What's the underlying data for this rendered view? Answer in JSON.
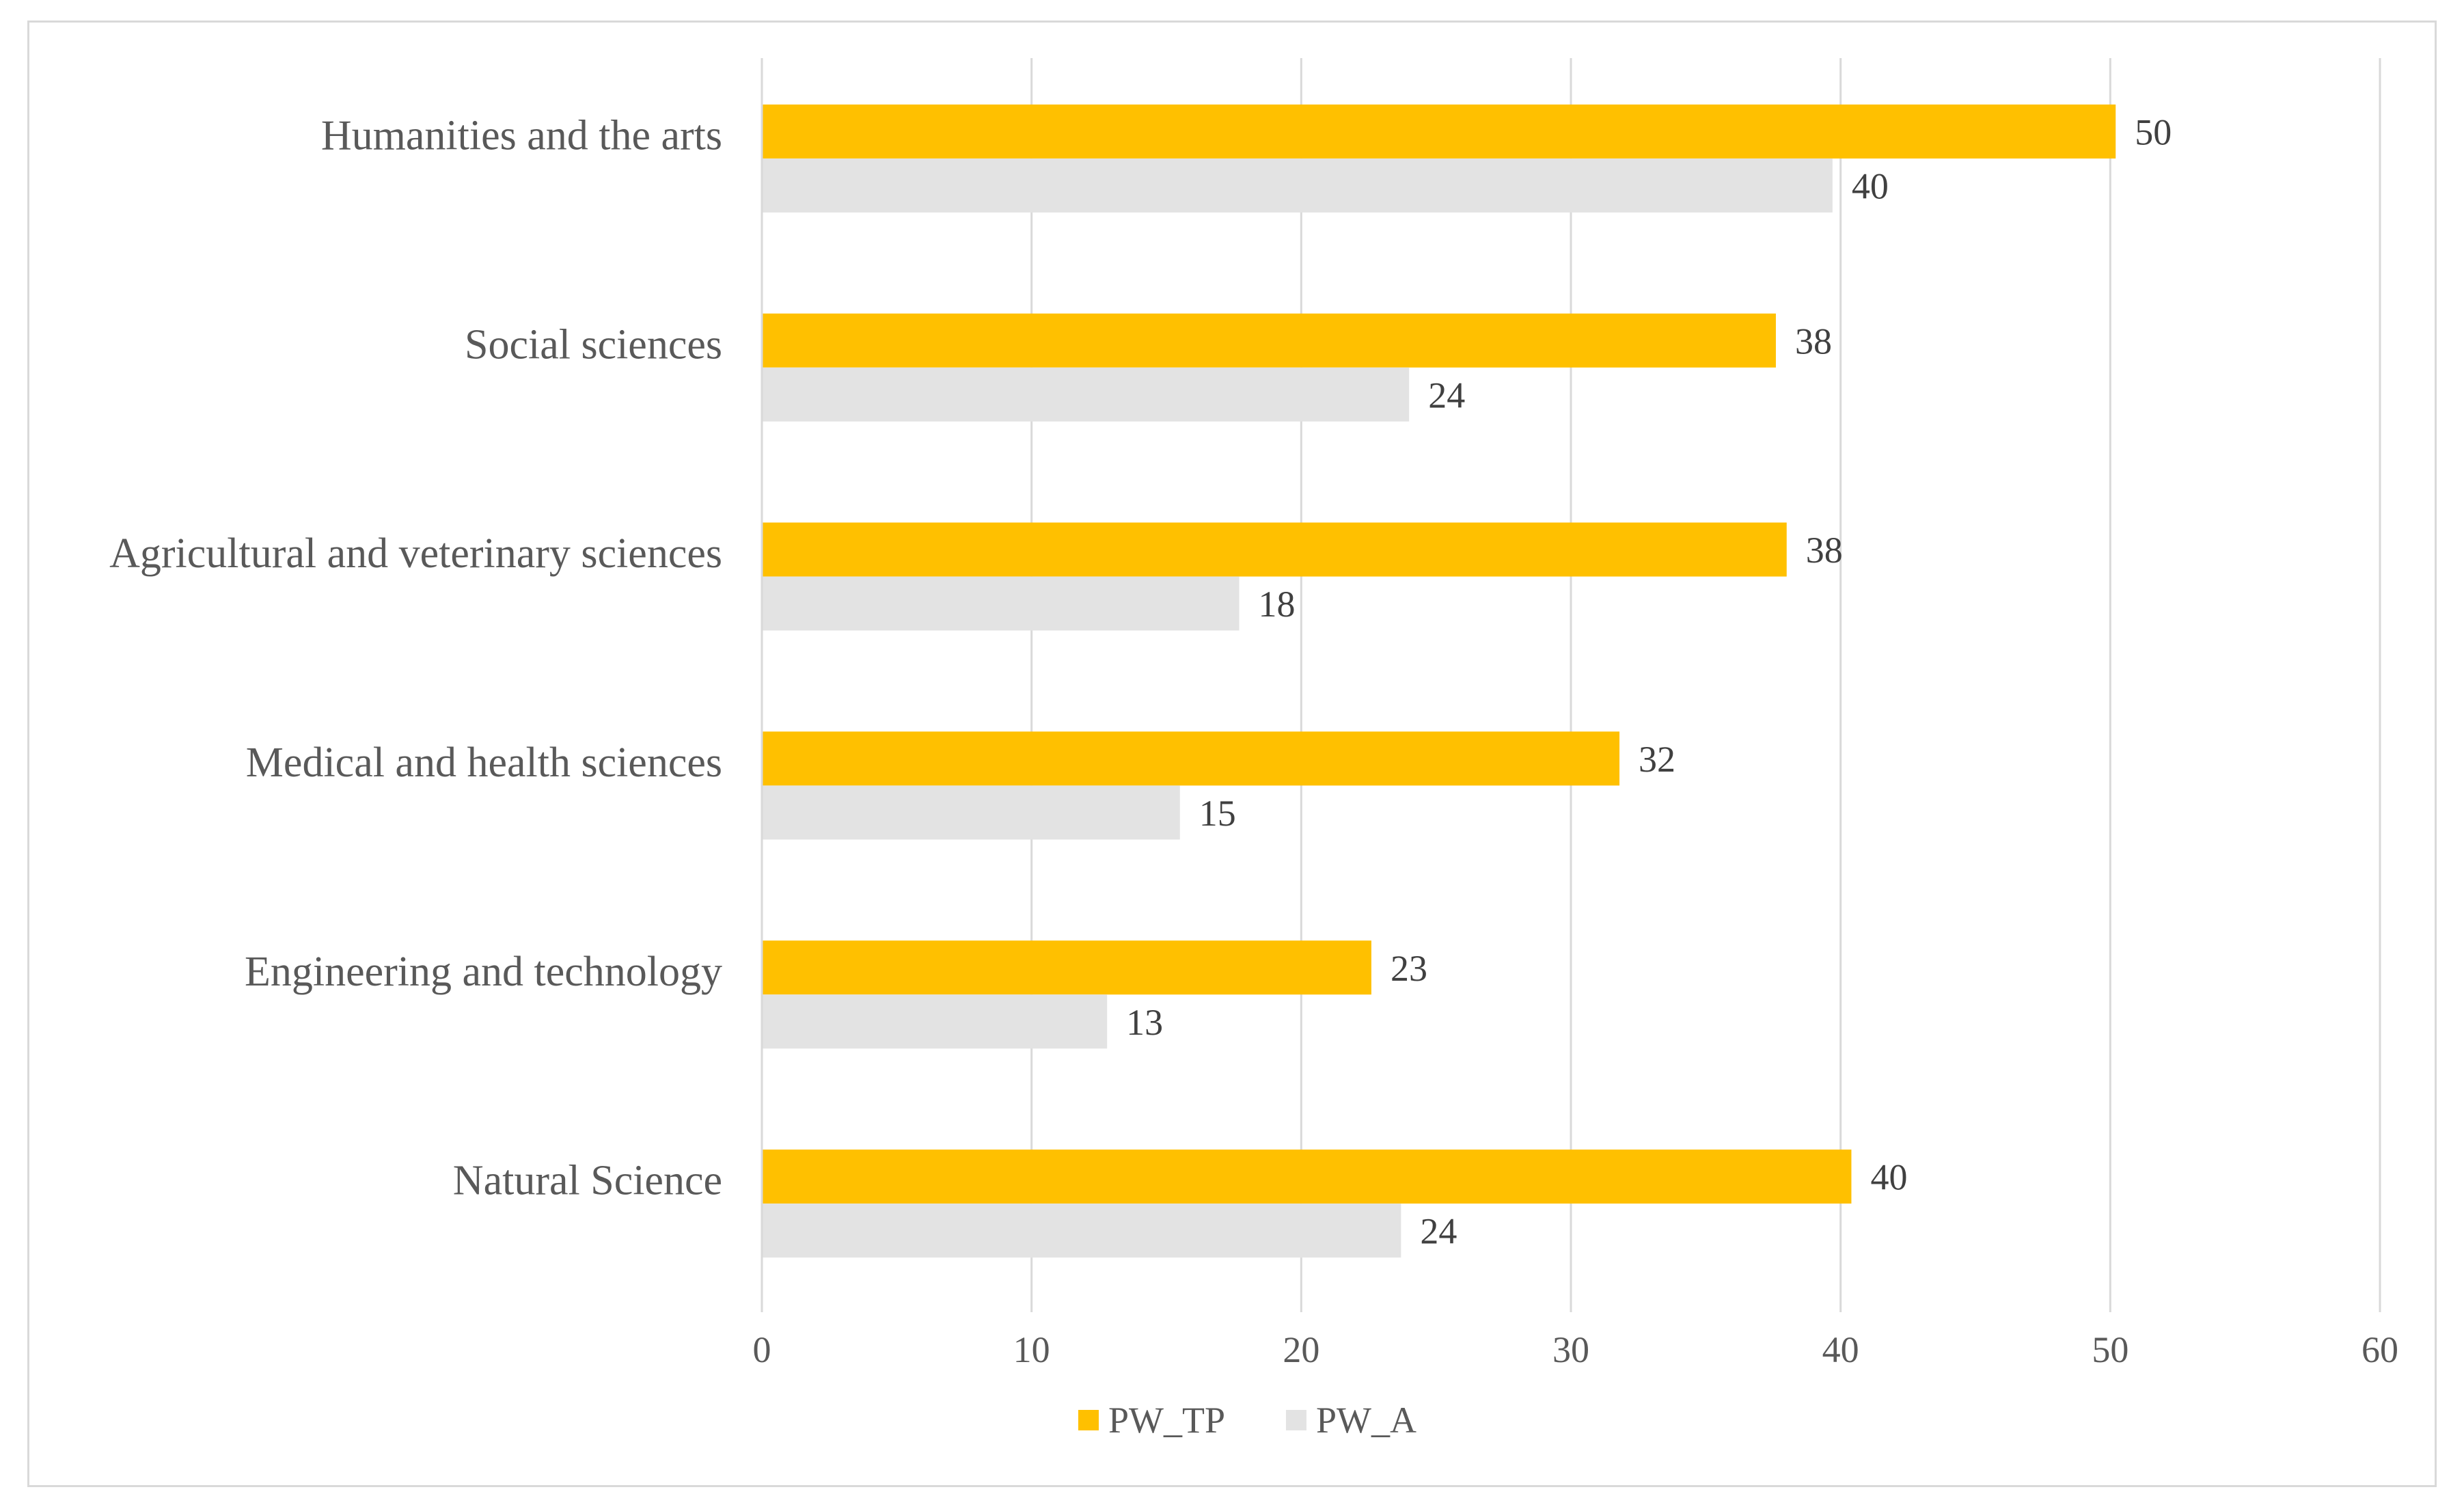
{
  "chart_data": {
    "type": "bar",
    "orientation": "horizontal",
    "title": "",
    "xlabel": "",
    "ylabel": "",
    "categories": [
      "Humanities and the arts",
      "Social sciences",
      "Agricultural and veterinary sciences",
      "Medical and health sciences",
      "Engineering and technology",
      "Natural Science"
    ],
    "series": [
      {
        "name": "PW_TP",
        "color": "#ffc000",
        "values": [
          50.2,
          37.6,
          38.0,
          31.8,
          22.6,
          40.4
        ],
        "labels": [
          "50",
          "38",
          "38",
          "32",
          "23",
          "40"
        ]
      },
      {
        "name": "PW_A",
        "color": "#e3e3e3",
        "values": [
          39.7,
          24.0,
          17.7,
          15.5,
          12.8,
          23.7
        ],
        "labels": [
          "40",
          "24",
          "18",
          "15",
          "13",
          "24"
        ]
      }
    ],
    "xlim": [
      0,
      60
    ],
    "xticks": [
      "0",
      "10",
      "20",
      "30",
      "40",
      "50",
      "60"
    ],
    "grid": true,
    "legend_position": "bottom"
  }
}
